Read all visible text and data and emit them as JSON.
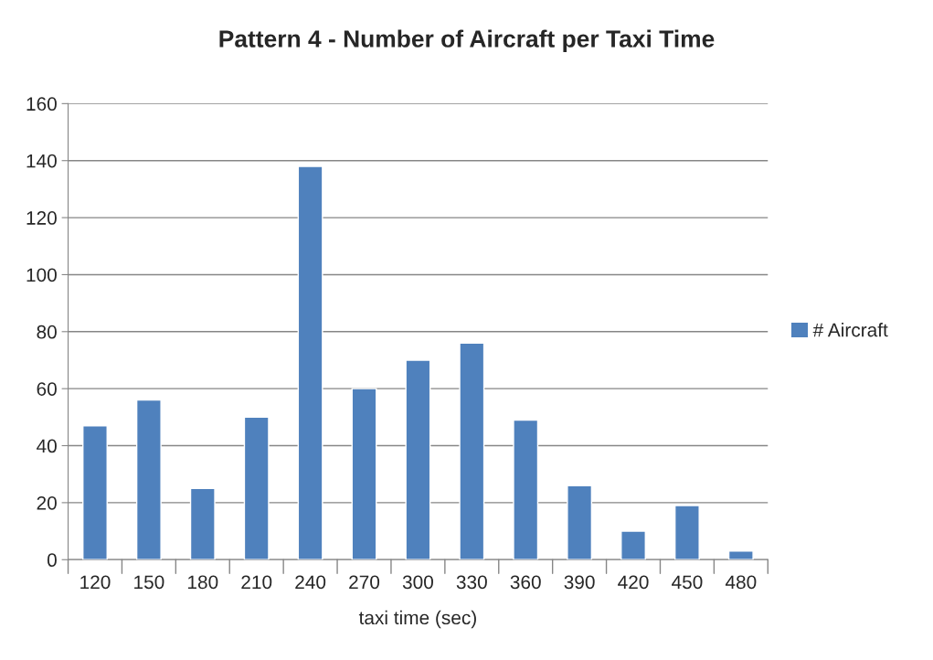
{
  "chart_data": {
    "type": "bar",
    "title": "Pattern 4 - Number of Aircraft per Taxi Time",
    "xlabel": "taxi time (sec)",
    "categories": [
      "120",
      "150",
      "180",
      "210",
      "240",
      "270",
      "300",
      "330",
      "360",
      "390",
      "420",
      "450",
      "480"
    ],
    "series": [
      {
        "name": "# Aircraft",
        "color": "#4f81bd",
        "values": [
          47,
          56,
          25,
          50,
          138,
          60,
          70,
          76,
          49,
          26,
          10,
          19,
          3
        ]
      }
    ],
    "ylim": [
      0,
      160
    ],
    "yticks": [
      0,
      20,
      40,
      60,
      80,
      100,
      120,
      140,
      160
    ],
    "grid": "y",
    "legend": "right"
  }
}
